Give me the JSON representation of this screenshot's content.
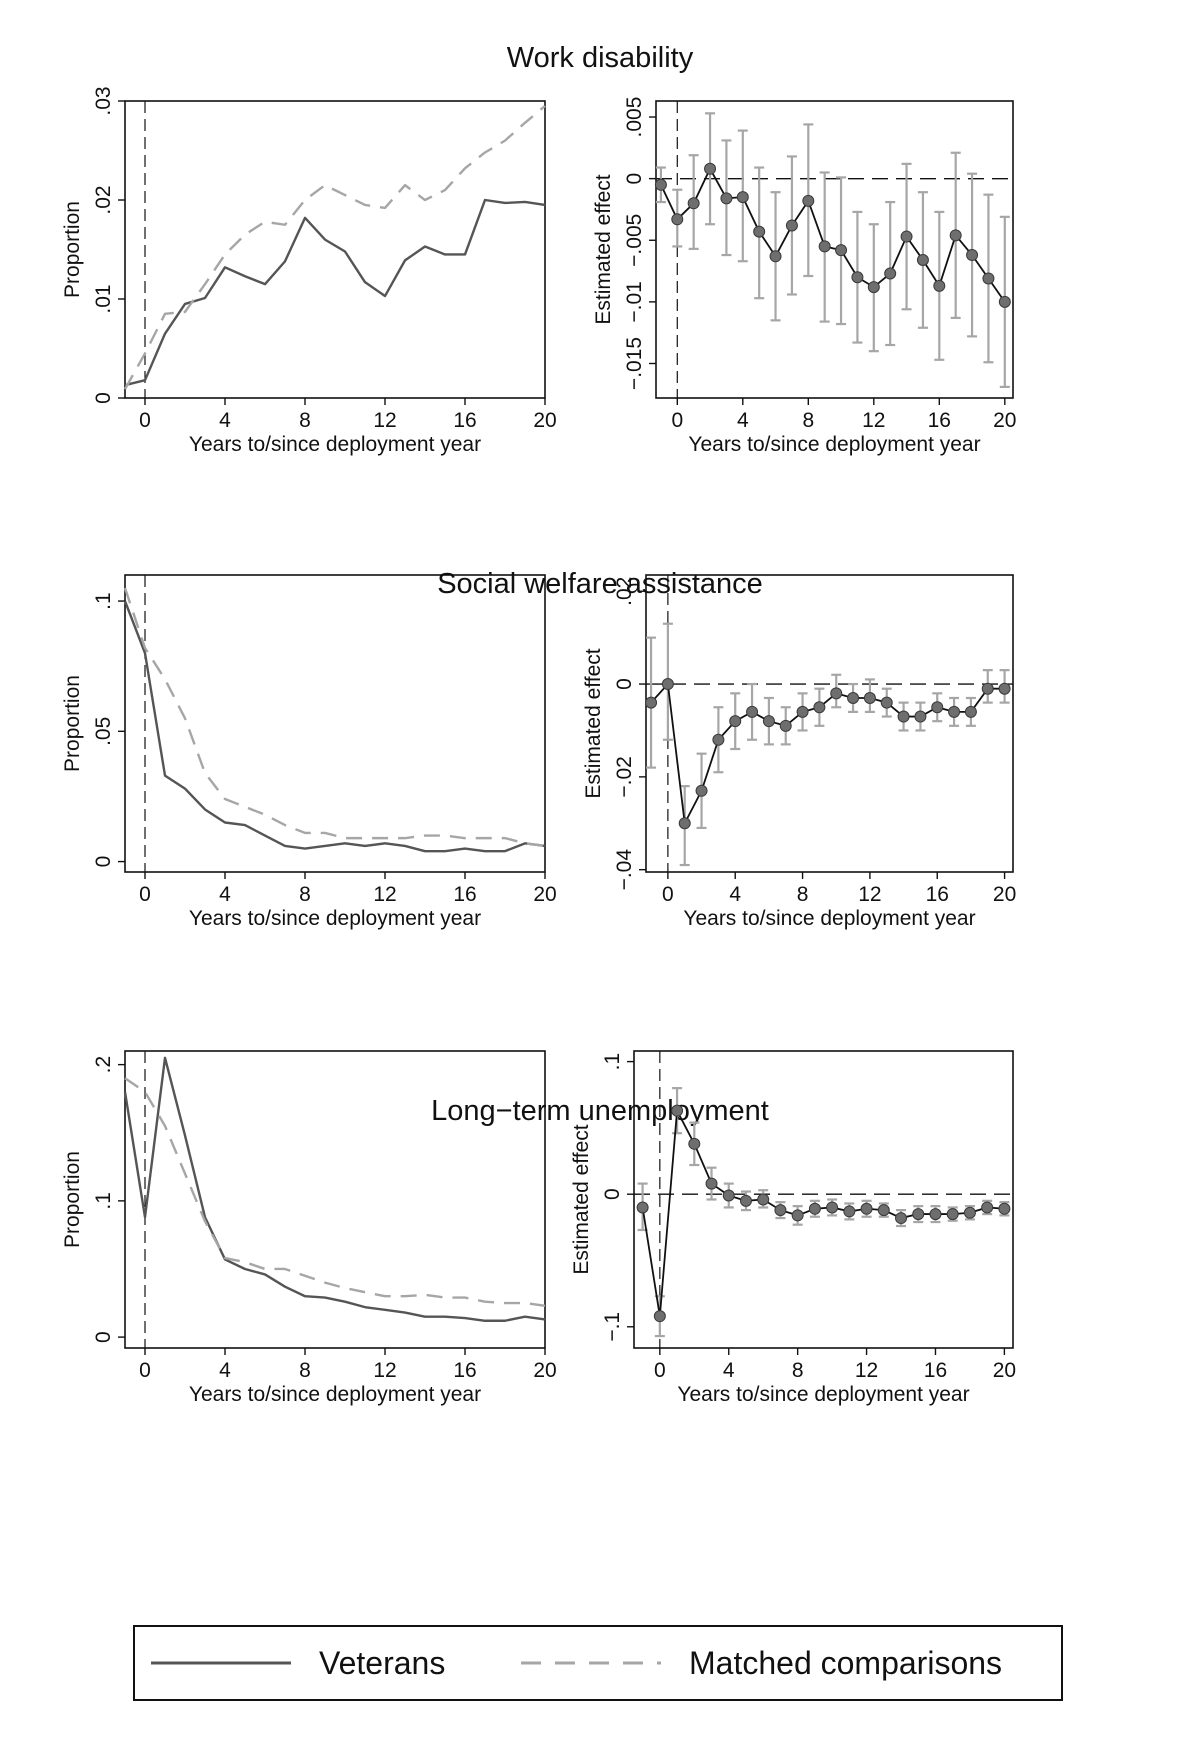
{
  "panels": [
    {
      "title": "Work disability"
    },
    {
      "title": "Social welfare assistance"
    },
    {
      "title": "Long−term unemployment"
    }
  ],
  "legend": {
    "veterans_label": "Veterans",
    "comparisons_label": "Matched comparisons"
  },
  "colors": {
    "veterans": "#555555",
    "comparisons": "#a6a6a6",
    "effect_line": "#111111",
    "marker": "#6e6e6e",
    "ci": "#a6a6a6"
  },
  "chart_data": [
    {
      "type": "line",
      "panel": "Work disability",
      "xlabel": "Years to/since deployment year",
      "ylabel": "Proportion",
      "xlim": [
        -1,
        20
      ],
      "ylim": [
        0,
        0.03
      ],
      "xticks": [
        0,
        4,
        8,
        12,
        16,
        20
      ],
      "xticklabels": [
        "0",
        "4",
        "8",
        "12",
        "16",
        "20"
      ],
      "yticks": [
        0,
        0.01,
        0.02,
        0.03
      ],
      "yticklabels": [
        "0",
        ".01",
        ".02",
        ".03"
      ],
      "vline": 0,
      "x": [
        -1,
        0,
        1,
        2,
        3,
        4,
        5,
        6,
        7,
        8,
        9,
        10,
        11,
        12,
        13,
        14,
        15,
        16,
        17,
        18,
        19,
        20
      ],
      "series": [
        {
          "name": "Veterans",
          "style": "solid",
          "values": [
            0.0013,
            0.0018,
            0.0065,
            0.0095,
            0.0101,
            0.0132,
            0.0123,
            0.0115,
            0.0138,
            0.0182,
            0.016,
            0.0148,
            0.0117,
            0.0103,
            0.0139,
            0.0153,
            0.0145,
            0.0145,
            0.02,
            0.0197,
            0.0198,
            0.0195
          ]
        },
        {
          "name": "Matched comparisons",
          "style": "dashed",
          "values": [
            0.0009,
            0.0045,
            0.0085,
            0.0087,
            0.0115,
            0.0145,
            0.0165,
            0.0178,
            0.0175,
            0.02,
            0.0215,
            0.0205,
            0.0195,
            0.0192,
            0.0215,
            0.02,
            0.021,
            0.0232,
            0.0248,
            0.026,
            0.0278,
            0.0295
          ]
        }
      ]
    },
    {
      "type": "scatter",
      "panel": "Work disability",
      "xlabel": "Years to/since deployment year",
      "ylabel": "Estimated effect",
      "xlim": [
        -1.3,
        20.5
      ],
      "ylim": [
        -0.0178,
        0.0063
      ],
      "xticks": [
        0,
        4,
        8,
        12,
        16,
        20
      ],
      "xticklabels": [
        "0",
        "4",
        "8",
        "12",
        "16",
        "20"
      ],
      "yticks": [
        0.005,
        0,
        -0.005,
        -0.01,
        -0.015
      ],
      "yticklabels": [
        ".005",
        "0",
        "−.005",
        "−.01",
        "−.015"
      ],
      "vline": 0,
      "hline": 0,
      "x": [
        -1,
        0,
        1,
        2,
        3,
        4,
        5,
        6,
        7,
        8,
        9,
        10,
        11,
        12,
        13,
        14,
        15,
        16,
        17,
        18,
        19,
        20
      ],
      "values": [
        -0.0005,
        -0.0033,
        -0.002,
        0.0008,
        -0.0016,
        -0.0015,
        -0.0043,
        -0.0063,
        -0.0038,
        -0.0018,
        -0.0055,
        -0.0058,
        -0.008,
        -0.0088,
        -0.0077,
        -0.0047,
        -0.0066,
        -0.0087,
        -0.0046,
        -0.0062,
        -0.0081,
        -0.01
      ],
      "ci_lower": [
        -0.0019,
        -0.0055,
        -0.0057,
        -0.0037,
        -0.0062,
        -0.0067,
        -0.0097,
        -0.0115,
        -0.0094,
        -0.0079,
        -0.0116,
        -0.0118,
        -0.0133,
        -0.014,
        -0.0135,
        -0.0106,
        -0.0121,
        -0.0147,
        -0.0113,
        -0.0128,
        -0.0149,
        -0.0169
      ],
      "ci_upper": [
        0.0009,
        -0.0009,
        0.0019,
        0.0053,
        0.0031,
        0.0039,
        0.0009,
        -0.0011,
        0.0018,
        0.0044,
        0.0005,
        0.0001,
        -0.0027,
        -0.0037,
        -0.0019,
        0.0012,
        -0.0011,
        -0.0027,
        0.0021,
        0.0004,
        -0.0013,
        -0.0031
      ]
    },
    {
      "type": "line",
      "panel": "Social welfare assistance",
      "xlabel": "Years to/since deployment year",
      "ylabel": "Proportion",
      "xlim": [
        -1,
        20
      ],
      "ylim": [
        -0.004,
        0.11
      ],
      "xticks": [
        0,
        4,
        8,
        12,
        16,
        20
      ],
      "xticklabels": [
        "0",
        "4",
        "8",
        "12",
        "16",
        "20"
      ],
      "yticks": [
        0,
        0.05,
        0.1
      ],
      "yticklabels": [
        "0",
        ".05",
        ".1"
      ],
      "vline": 0,
      "x": [
        -1,
        0,
        1,
        2,
        3,
        4,
        5,
        6,
        7,
        8,
        9,
        10,
        11,
        12,
        13,
        14,
        15,
        16,
        17,
        18,
        19,
        20
      ],
      "series": [
        {
          "name": "Veterans",
          "style": "solid",
          "values": [
            0.1,
            0.08,
            0.033,
            0.028,
            0.02,
            0.015,
            0.014,
            0.01,
            0.006,
            0.005,
            0.006,
            0.007,
            0.006,
            0.007,
            0.006,
            0.004,
            0.004,
            0.005,
            0.004,
            0.004,
            0.007,
            0.006
          ]
        },
        {
          "name": "Matched comparisons",
          "style": "dashed",
          "values": [
            0.105,
            0.082,
            0.07,
            0.055,
            0.034,
            0.024,
            0.021,
            0.018,
            0.014,
            0.011,
            0.011,
            0.009,
            0.009,
            0.009,
            0.009,
            0.01,
            0.01,
            0.009,
            0.009,
            0.009,
            0.007,
            0.006
          ]
        }
      ]
    },
    {
      "type": "scatter",
      "panel": "Social welfare assistance",
      "xlabel": "Years to/since deployment year",
      "ylabel": "Estimated effect",
      "xlim": [
        -1.3,
        20.5
      ],
      "ylim": [
        -0.0405,
        0.0235
      ],
      "xticks": [
        0,
        4,
        8,
        12,
        16,
        20
      ],
      "xticklabels": [
        "0",
        "4",
        "8",
        "12",
        "16",
        "20"
      ],
      "yticks": [
        0.02,
        0,
        -0.02,
        -0.04
      ],
      "yticklabels": [
        ".02",
        "0",
        "−.02",
        "−.04"
      ],
      "vline": 0,
      "hline": 0,
      "x": [
        -1,
        0,
        1,
        2,
        3,
        4,
        5,
        6,
        7,
        8,
        9,
        10,
        11,
        12,
        13,
        14,
        15,
        16,
        17,
        18,
        19,
        20
      ],
      "values": [
        -0.004,
        0,
        -0.03,
        -0.023,
        -0.012,
        -0.008,
        -0.006,
        -0.008,
        -0.009,
        -0.006,
        -0.005,
        -0.002,
        -0.003,
        -0.003,
        -0.004,
        -0.007,
        -0.007,
        -0.005,
        -0.006,
        -0.006,
        -0.001,
        -0.001
      ],
      "ci_lower": [
        -0.018,
        -0.012,
        -0.039,
        -0.031,
        -0.019,
        -0.014,
        -0.012,
        -0.013,
        -0.013,
        -0.01,
        -0.009,
        -0.005,
        -0.006,
        -0.006,
        -0.007,
        -0.01,
        -0.01,
        -0.008,
        -0.009,
        -0.009,
        -0.004,
        -0.004
      ],
      "ci_upper": [
        0.01,
        0.013,
        -0.022,
        -0.015,
        -0.005,
        -0.002,
        0,
        -0.003,
        -0.005,
        -0.002,
        -0.001,
        0.002,
        0,
        0.001,
        -0.001,
        -0.004,
        -0.004,
        -0.002,
        -0.003,
        -0.003,
        0.003,
        0.003
      ]
    },
    {
      "type": "line",
      "panel": "Long−term unemployment",
      "xlabel": "Years to/since deployment year",
      "ylabel": "Proportion",
      "xlim": [
        -1,
        20
      ],
      "ylim": [
        -0.008,
        0.21
      ],
      "xticks": [
        0,
        4,
        8,
        12,
        16,
        20
      ],
      "xticklabels": [
        "0",
        "4",
        "8",
        "12",
        "16",
        "20"
      ],
      "yticks": [
        0,
        0.1,
        0.2
      ],
      "yticklabels": [
        "0",
        ".1",
        ".2"
      ],
      "vline": 0,
      "x": [
        -1,
        0,
        1,
        2,
        3,
        4,
        5,
        6,
        7,
        8,
        9,
        10,
        11,
        12,
        13,
        14,
        15,
        16,
        17,
        18,
        19,
        20
      ],
      "series": [
        {
          "name": "Veterans",
          "style": "solid",
          "values": [
            0.18,
            0.088,
            0.205,
            0.148,
            0.088,
            0.057,
            0.05,
            0.046,
            0.037,
            0.03,
            0.029,
            0.026,
            0.022,
            0.02,
            0.018,
            0.015,
            0.015,
            0.014,
            0.012,
            0.012,
            0.015,
            0.013
          ]
        },
        {
          "name": "Matched comparisons",
          "style": "dashed",
          "values": [
            0.19,
            0.18,
            0.155,
            0.12,
            0.085,
            0.058,
            0.055,
            0.05,
            0.05,
            0.045,
            0.04,
            0.036,
            0.033,
            0.03,
            0.03,
            0.031,
            0.029,
            0.029,
            0.026,
            0.025,
            0.025,
            0.023
          ]
        }
      ]
    },
    {
      "type": "scatter",
      "panel": "Long−term unemployment",
      "xlabel": "Years to/since deployment year",
      "ylabel": "Estimated effect",
      "xlim": [
        -1.5,
        20.5
      ],
      "ylim": [
        -0.116,
        0.108
      ],
      "xticks": [
        0,
        4,
        8,
        12,
        16,
        20
      ],
      "xticklabels": [
        "0",
        "4",
        "8",
        "12",
        "16",
        "20"
      ],
      "yticks": [
        0.1,
        0,
        -0.1
      ],
      "yticklabels": [
        ".1",
        "0",
        "−.1"
      ],
      "vline": 0,
      "hline": 0,
      "x": [
        -1,
        0,
        1,
        2,
        3,
        4,
        5,
        6,
        7,
        8,
        9,
        10,
        11,
        12,
        13,
        14,
        15,
        16,
        17,
        18,
        19,
        20
      ],
      "values": [
        -0.01,
        -0.092,
        0.063,
        0.038,
        0.008,
        -0.001,
        -0.005,
        -0.004,
        -0.012,
        -0.016,
        -0.011,
        -0.01,
        -0.013,
        -0.011,
        -0.012,
        -0.018,
        -0.015,
        -0.015,
        -0.015,
        -0.014,
        -0.01,
        -0.011
      ],
      "ci_lower": [
        -0.027,
        -0.107,
        0.046,
        0.022,
        -0.004,
        -0.01,
        -0.012,
        -0.01,
        -0.018,
        -0.023,
        -0.017,
        -0.016,
        -0.019,
        -0.017,
        -0.017,
        -0.024,
        -0.021,
        -0.021,
        -0.02,
        -0.019,
        -0.015,
        -0.016
      ],
      "ci_upper": [
        0.008,
        -0.077,
        0.08,
        0.054,
        0.02,
        0.008,
        0.002,
        0.003,
        -0.006,
        -0.009,
        -0.005,
        -0.004,
        -0.007,
        -0.005,
        -0.007,
        -0.012,
        -0.009,
        -0.009,
        -0.01,
        -0.009,
        -0.005,
        -0.006
      ]
    }
  ]
}
